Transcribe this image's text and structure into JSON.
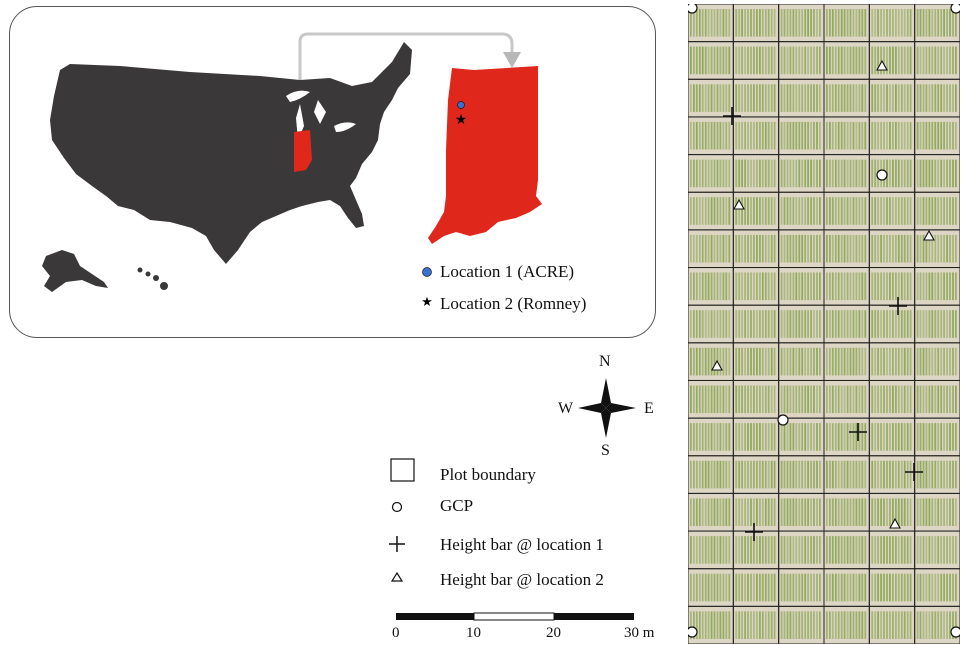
{
  "inset": {
    "legend": [
      {
        "label": "Location 1 (ACRE)",
        "marker": "blue-circle",
        "color": "#3b6fd1"
      },
      {
        "label": "Location 2 (Romney)",
        "marker": "black-star",
        "color": "#000000"
      }
    ],
    "us_color": "#3a3838",
    "state_color": "#e0271c"
  },
  "compass": {
    "n": "N",
    "s": "S",
    "e": "E",
    "w": "W"
  },
  "legend": {
    "plot_boundary": "Plot boundary",
    "gcp": "GCP",
    "height_bar_1": "Height bar @ location 1",
    "height_bar_2": "Height bar @ location 2"
  },
  "scale": {
    "ticks": [
      "0",
      "10",
      "20",
      "30 m"
    ]
  },
  "field": {
    "columns": 6,
    "rows": 17,
    "vegetation_color": "#8fa85a",
    "soil_color": "#ddd6c4"
  }
}
